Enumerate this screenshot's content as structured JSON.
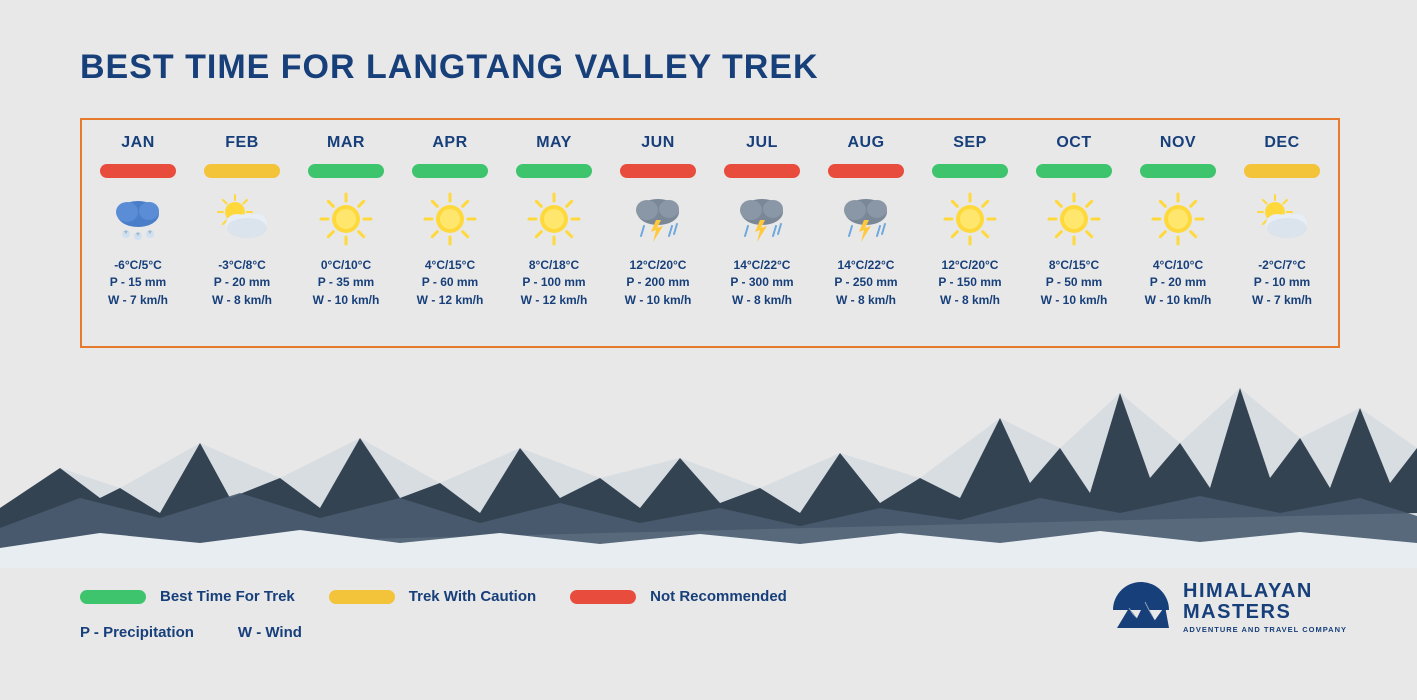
{
  "title": "BEST TIME FOR LANGTANG VALLEY TREK",
  "colors": {
    "title": "#173f7a",
    "border": "#e87a2e",
    "background": "#e8e8e8",
    "best": "#3fc46e",
    "caution": "#f3c33a",
    "not_recommended": "#e84c3d",
    "text": "#173f7a"
  },
  "chart": {
    "type": "infographic",
    "months": [
      {
        "name": "JAN",
        "status": "not_recommended",
        "icon": "snow",
        "temp": "-6°C/5°C",
        "precip": "P - 15 mm",
        "wind": "W - 7 km/h"
      },
      {
        "name": "FEB",
        "status": "caution",
        "icon": "partly",
        "temp": "-3°C/8°C",
        "precip": "P - 20 mm",
        "wind": "W - 8 km/h"
      },
      {
        "name": "MAR",
        "status": "best",
        "icon": "sunny",
        "temp": "0°C/10°C",
        "precip": "P - 35 mm",
        "wind": "W - 10 km/h"
      },
      {
        "name": "APR",
        "status": "best",
        "icon": "sunny",
        "temp": "4°C/15°C",
        "precip": "P - 60 mm",
        "wind": "W - 12 km/h"
      },
      {
        "name": "MAY",
        "status": "best",
        "icon": "sunny",
        "temp": "8°C/18°C",
        "precip": "P - 100 mm",
        "wind": "W - 12 km/h"
      },
      {
        "name": "JUN",
        "status": "not_recommended",
        "icon": "storm",
        "temp": "12°C/20°C",
        "precip": "P - 200 mm",
        "wind": "W - 10 km/h"
      },
      {
        "name": "JUL",
        "status": "not_recommended",
        "icon": "storm",
        "temp": "14°C/22°C",
        "precip": "P - 300 mm",
        "wind": "W - 8 km/h"
      },
      {
        "name": "AUG",
        "status": "not_recommended",
        "icon": "storm",
        "temp": "14°C/22°C",
        "precip": "P - 250 mm",
        "wind": "W - 8 km/h"
      },
      {
        "name": "SEP",
        "status": "best",
        "icon": "sunny",
        "temp": "12°C/20°C",
        "precip": "P - 150 mm",
        "wind": "W - 8 km/h"
      },
      {
        "name": "OCT",
        "status": "best",
        "icon": "sunny",
        "temp": "8°C/15°C",
        "precip": "P - 50 mm",
        "wind": "W - 10 km/h"
      },
      {
        "name": "NOV",
        "status": "best",
        "icon": "sunny",
        "temp": "4°C/10°C",
        "precip": "P - 20 mm",
        "wind": "W - 10 km/h"
      },
      {
        "name": "DEC",
        "status": "caution",
        "icon": "partly",
        "temp": "-2°C/7°C",
        "precip": "P - 10 mm",
        "wind": "W - 7 km/h"
      }
    ]
  },
  "legend": {
    "best": "Best Time For Trek",
    "caution": "Trek With Caution",
    "not_recommended": "Not Recommended",
    "precip": "P - Precipitation",
    "wind": "W - Wind"
  },
  "brand": {
    "line1": "HIMALAYAN",
    "line2": "MASTERS",
    "line3": "ADVENTURE AND TRAVEL COMPANY"
  },
  "mountain_colors": {
    "snow": "#d8dde2",
    "rock_dark": "#2a3a4a",
    "rock_mid": "#4a5c70",
    "rock_light": "#6b7d91"
  }
}
